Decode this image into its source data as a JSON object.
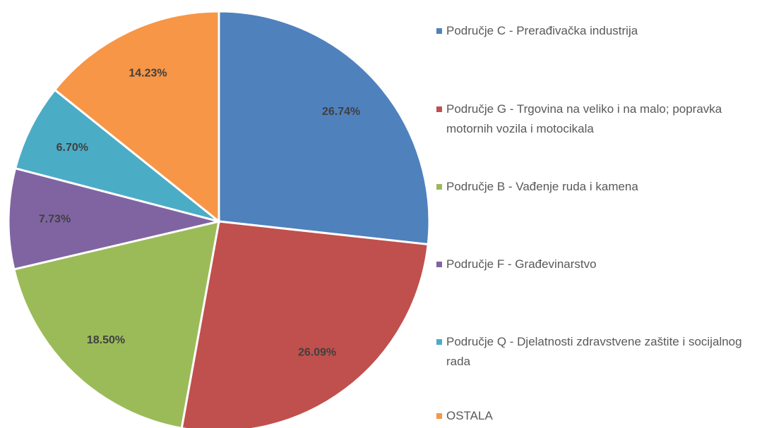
{
  "chart_data": {
    "type": "pie",
    "categories": [
      "Područje C - Prerađivačka industrija",
      "Područje G - Trgovina na veliko i na malo; popravka motornih vozila i motocikala",
      "Područje B - Vađenje ruda i kamena",
      "Područje F - Građevinarstvo",
      "Područje Q - Djelatnosti zdravstvene zaštite i socijalnog rada",
      "OSTALA"
    ],
    "values": [
      26.74,
      26.09,
      18.5,
      7.73,
      6.7,
      14.23
    ],
    "value_labels": [
      "26.74%",
      "26.09%",
      "18.50%",
      "7.73%",
      "6.70%",
      "14.23%"
    ],
    "colors": [
      "#4f81bd",
      "#c0504d",
      "#9bbb59",
      "#8064a2",
      "#4bacc6",
      "#f79646"
    ],
    "legend": "right"
  }
}
